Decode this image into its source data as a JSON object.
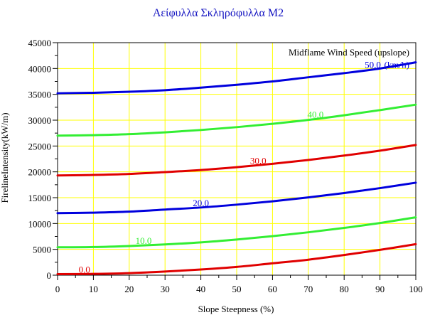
{
  "chart_data": {
    "type": "line",
    "title": "Αείφυλλα Σκληρόφυλλα Μ2",
    "xlabel": "Slope Steepness (%)",
    "ylabel": "FirelineIntensity(kW/m)",
    "xlim": [
      0,
      100
    ],
    "ylim": [
      0,
      45000
    ],
    "x_ticks": [
      0,
      10,
      20,
      30,
      40,
      50,
      60,
      70,
      80,
      90,
      100
    ],
    "y_ticks": [
      0,
      5000,
      10000,
      15000,
      20000,
      25000,
      30000,
      35000,
      40000,
      45000
    ],
    "grid": true,
    "grid_color": "#ffff00",
    "legend_title": "Midflame Wind Speed (upslope)",
    "legend_placement": "top-right",
    "x": [
      0,
      10,
      20,
      30,
      40,
      50,
      60,
      70,
      80,
      90,
      100
    ],
    "series": [
      {
        "name": "0.0",
        "color": "#e00000",
        "label_at_x": 7.5,
        "values": [
          200,
          250,
          400,
          700,
          1100,
          1600,
          2300,
          3000,
          3900,
          4900,
          6000
        ]
      },
      {
        "name": "10.0",
        "color": "#33ee33",
        "label_at_x": 24,
        "values": [
          5400,
          5450,
          5650,
          5950,
          6350,
          6900,
          7550,
          8300,
          9150,
          10100,
          11200
        ]
      },
      {
        "name": "20.0",
        "color": "#0000dd",
        "label_at_x": 40,
        "values": [
          12000,
          12100,
          12300,
          12700,
          13100,
          13650,
          14300,
          15050,
          15900,
          16850,
          17900
        ]
      },
      {
        "name": "30.0",
        "color": "#e00000",
        "label_at_x": 56,
        "values": [
          19300,
          19400,
          19600,
          19950,
          20350,
          20900,
          21550,
          22300,
          23150,
          24100,
          25200
        ]
      },
      {
        "name": "40.0",
        "color": "#33ee33",
        "label_at_x": 72,
        "values": [
          27000,
          27100,
          27300,
          27650,
          28100,
          28650,
          29300,
          30050,
          30950,
          31950,
          33000
        ]
      },
      {
        "name": "50.0",
        "color": "#0000dd",
        "label_at_x": 88,
        "values": [
          35200,
          35300,
          35500,
          35800,
          36300,
          36850,
          37500,
          38300,
          39100,
          40000,
          41200
        ]
      }
    ],
    "top_series_unit_label": "(km/h)"
  }
}
